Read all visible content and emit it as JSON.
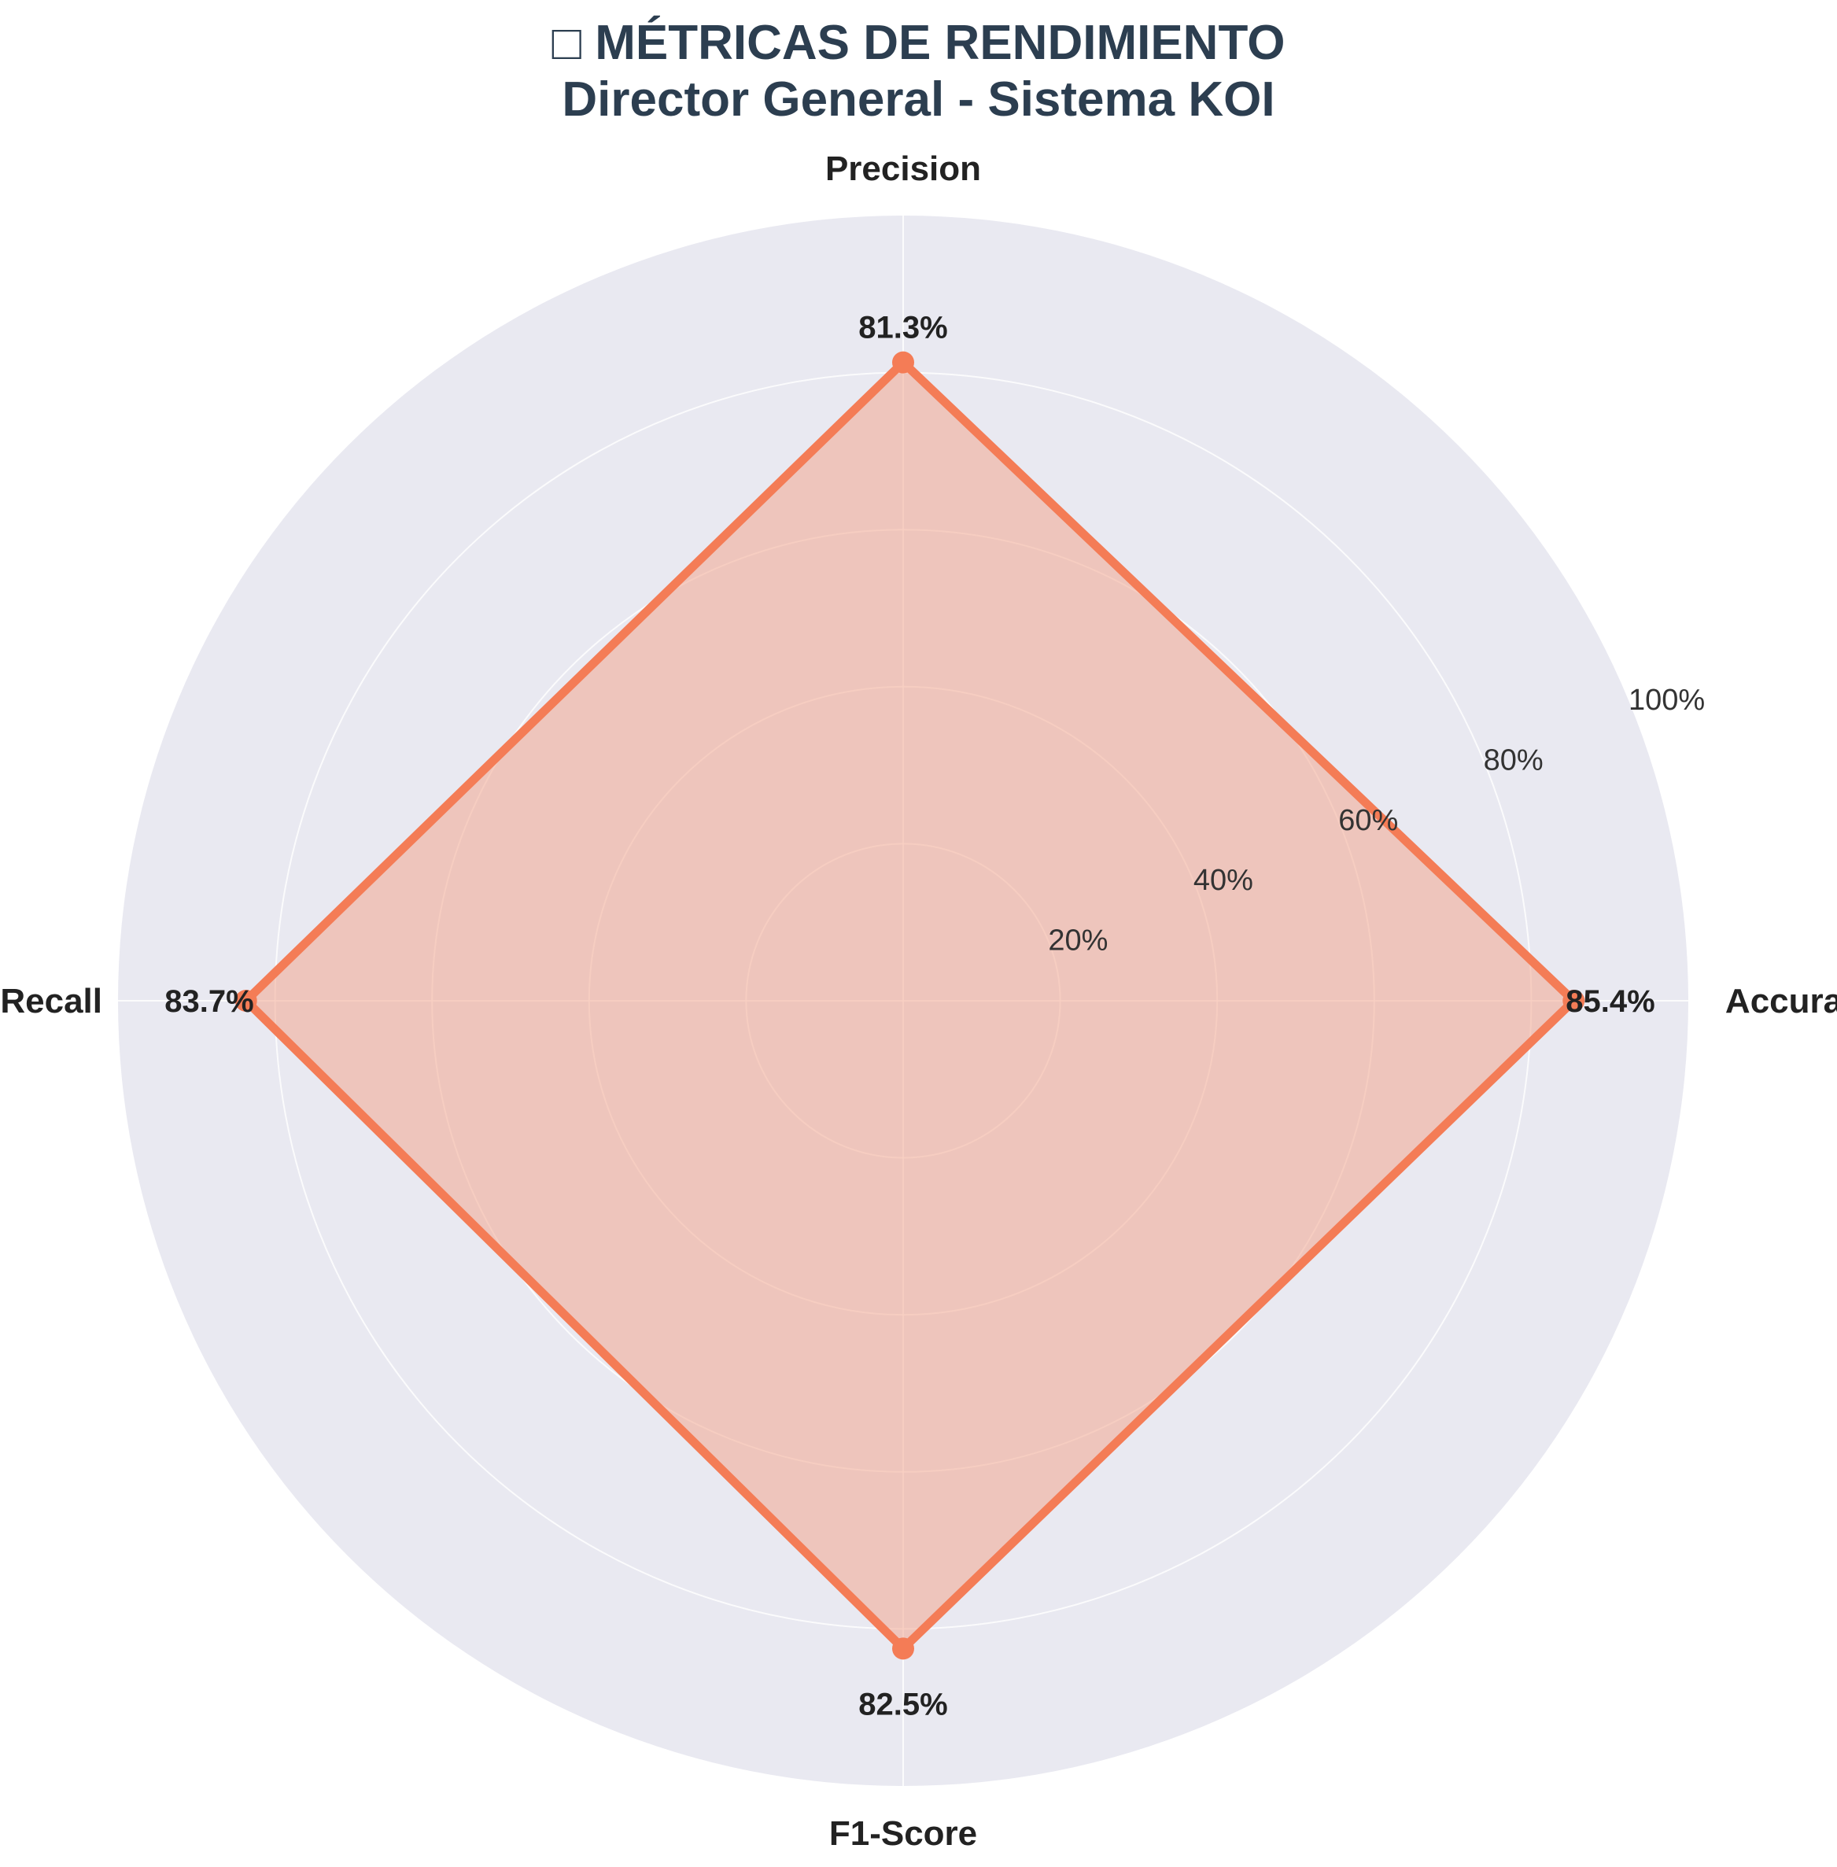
{
  "chart_data": {
    "type": "radar",
    "title_lines": [
      "□ MÉTRICAS DE RENDIMIENTO",
      "Director General - Sistema KOI"
    ],
    "categories": [
      "Accuracy",
      "Precision",
      "Recall",
      "F1-Score"
    ],
    "series": [
      {
        "values": [
          85.4,
          81.3,
          83.7,
          82.5
        ],
        "color": "#f47c56"
      }
    ],
    "data_labels": [
      "85.4%",
      "81.3%",
      "83.7%",
      "82.5%"
    ],
    "radial_ticks": [
      20,
      40,
      60,
      80,
      100
    ],
    "radial_tick_labels": [
      "20%",
      "40%",
      "60%",
      "80%",
      "100%"
    ],
    "rlim": [
      0,
      100
    ],
    "grid": true,
    "background_color": "#e9e9f1",
    "fill_color": "#f2a88f",
    "line_color": "#f47c56"
  }
}
